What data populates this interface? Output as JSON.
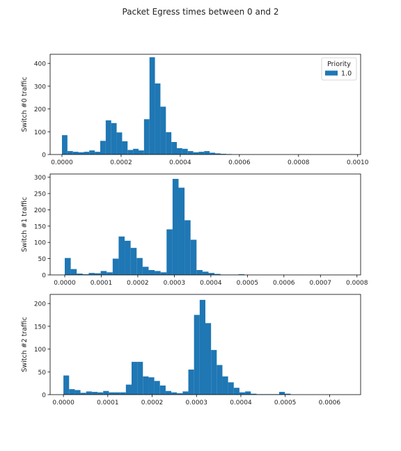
{
  "figure": {
    "title": "Packet Egress times between 0 and 2"
  },
  "colors": {
    "bar": "#1f77b4",
    "axis": "#000000",
    "text": "#222222"
  },
  "chart_data": [
    {
      "type": "bar",
      "histogram": true,
      "ylabel": "Switch #0 traffic",
      "xlim": [
        -4e-05,
        0.00101
      ],
      "ylim": [
        0,
        440
      ],
      "xticks": [
        0,
        0.0002,
        0.0004,
        0.0006,
        0.0008,
        0.001
      ],
      "xtick_labels": [
        "0.0000",
        "0.0002",
        "0.0004",
        "0.0006",
        "0.0008",
        "0.0010"
      ],
      "yticks": [
        0,
        100,
        200,
        300,
        400
      ],
      "ytick_labels": [
        "0",
        "100",
        "200",
        "300",
        "400"
      ],
      "bin_start": 0,
      "bin_width": 1.85e-05,
      "values": [
        85,
        15,
        12,
        10,
        12,
        18,
        12,
        60,
        150,
        138,
        97,
        58,
        20,
        25,
        18,
        155,
        427,
        312,
        210,
        98,
        55,
        28,
        25,
        15,
        10,
        12,
        15,
        8,
        5,
        3,
        2
      ],
      "legend": {
        "title": "Priority",
        "entries": [
          "1.0"
        ],
        "position": "upper right"
      }
    },
    {
      "type": "bar",
      "histogram": true,
      "ylabel": "Switch #1 traffic",
      "xlim": [
        -4e-05,
        0.00081
      ],
      "ylim": [
        0,
        310
      ],
      "xticks": [
        0,
        0.0001,
        0.0002,
        0.0003,
        0.0004,
        0.0005,
        0.0006,
        0.0007,
        0.0008
      ],
      "xtick_labels": [
        "0.0000",
        "0.0001",
        "0.0002",
        "0.0003",
        "0.0004",
        "0.0005",
        "0.0006",
        "0.0007",
        "0.0008"
      ],
      "yticks": [
        0,
        50,
        100,
        150,
        200,
        250,
        300
      ],
      "ytick_labels": [
        "0",
        "50",
        "100",
        "150",
        "200",
        "250",
        "300"
      ],
      "bin_start": 0,
      "bin_width": 1.64e-05,
      "values": [
        52,
        18,
        4,
        2,
        6,
        5,
        12,
        8,
        50,
        118,
        105,
        83,
        52,
        25,
        15,
        12,
        8,
        140,
        295,
        268,
        168,
        108,
        15,
        10,
        6,
        3,
        1,
        1,
        1,
        2
      ],
      "legend": null
    },
    {
      "type": "bar",
      "histogram": true,
      "ylabel": "Switch #2 traffic",
      "xlim": [
        -3e-05,
        0.00067
      ],
      "ylim": [
        0,
        220
      ],
      "xticks": [
        0,
        0.0001,
        0.0002,
        0.0003,
        0.0004,
        0.0005,
        0.0006
      ],
      "xtick_labels": [
        "0.0000",
        "0.0001",
        "0.0002",
        "0.0003",
        "0.0004",
        "0.0005",
        "0.0006"
      ],
      "yticks": [
        0,
        50,
        100,
        150,
        200
      ],
      "ytick_labels": [
        "0",
        "50",
        "100",
        "150",
        "200"
      ],
      "bin_start": 0,
      "bin_width": 1.28e-05,
      "values": [
        42,
        12,
        10,
        4,
        7,
        6,
        5,
        8,
        5,
        5,
        5,
        22,
        72,
        72,
        40,
        38,
        30,
        20,
        8,
        5,
        3,
        7,
        55,
        175,
        208,
        157,
        98,
        65,
        40,
        27,
        15,
        5,
        7,
        2,
        1,
        1,
        1,
        1,
        6,
        2
      ]
    }
  ]
}
